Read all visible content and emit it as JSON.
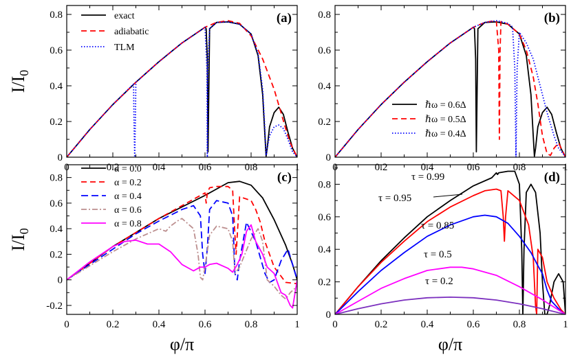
{
  "chart_data": [
    {
      "panel": "a",
      "type": "line",
      "label": "(a)",
      "ylabel": "I/I0",
      "xlabel": "",
      "xlim": [
        0,
        1
      ],
      "ylim": [
        0,
        0.85
      ],
      "xticks": [
        "0",
        "0.2",
        "0.4",
        "0.6",
        "0.8",
        "1"
      ],
      "yticks": [
        "0",
        "0.2",
        "0.4",
        "0.6",
        "0.8"
      ],
      "legend": [
        "exact",
        "adiabatic",
        "TLM"
      ],
      "legend_position": "top-left",
      "series": [
        {
          "name": "exact",
          "color": "#000000",
          "dash": "solid",
          "x": [
            0,
            0.1,
            0.2,
            0.3,
            0.4,
            0.5,
            0.58,
            0.6,
            0.605,
            0.61,
            0.613,
            0.62,
            0.65,
            0.7,
            0.75,
            0.8,
            0.83,
            0.85,
            0.86,
            0.865,
            0.87,
            0.88,
            0.9,
            0.92,
            0.94,
            0.96,
            0.98,
            1.0
          ],
          "y": [
            0,
            0.155,
            0.295,
            0.42,
            0.535,
            0.64,
            0.71,
            0.728,
            0.72,
            0.55,
            0.03,
            0.72,
            0.755,
            0.758,
            0.745,
            0.69,
            0.57,
            0.35,
            0.12,
            0.005,
            0.05,
            0.17,
            0.25,
            0.28,
            0.24,
            0.14,
            0.05,
            0
          ]
        },
        {
          "name": "adiabatic",
          "color": "#ff0000",
          "dash": "8,5",
          "x": [
            0,
            0.1,
            0.2,
            0.3,
            0.4,
            0.5,
            0.6,
            0.65,
            0.7,
            0.75,
            0.8,
            0.85,
            0.9,
            0.95,
            0.97,
            1.0
          ],
          "y": [
            0,
            0.155,
            0.295,
            0.42,
            0.535,
            0.64,
            0.728,
            0.755,
            0.765,
            0.75,
            0.68,
            0.55,
            0.38,
            0.16,
            0.08,
            0
          ]
        },
        {
          "name": "TLM",
          "color": "#0000ff",
          "dash": "1.5,2.5",
          "x": [
            0,
            0.1,
            0.2,
            0.29,
            0.292,
            0.295,
            0.298,
            0.3,
            0.4,
            0.5,
            0.6,
            0.608,
            0.61,
            0.612,
            0.62,
            0.65,
            0.7,
            0.75,
            0.8,
            0.83,
            0.85,
            0.86,
            0.865,
            0.87,
            0.88,
            0.9,
            0.92,
            0.94,
            0.96,
            0.98,
            1.0
          ],
          "y": [
            0,
            0.155,
            0.295,
            0.41,
            0.2,
            0,
            0.2,
            0.42,
            0.535,
            0.64,
            0.728,
            0.5,
            0.0,
            0.5,
            0.72,
            0.755,
            0.758,
            0.745,
            0.69,
            0.58,
            0.38,
            0.15,
            0.01,
            0.05,
            0.12,
            0.17,
            0.18,
            0.16,
            0.1,
            0.03,
            0
          ]
        }
      ]
    },
    {
      "panel": "b",
      "type": "line",
      "label": "(b)",
      "ylabel": "",
      "xlabel": "",
      "xlim": [
        0,
        1
      ],
      "ylim": [
        0,
        0.85
      ],
      "xticks": [
        "0",
        "0.2",
        "0.4",
        "0.6",
        "0.8",
        "1"
      ],
      "yticks": [
        "0",
        "0.2",
        "0.4",
        "0.6",
        "0.8"
      ],
      "legend": [
        "ℏω = 0.6Δ",
        "ℏω = 0.5Δ",
        "ℏω = 0.4Δ"
      ],
      "legend_position": "bottom-right",
      "series": [
        {
          "name": "ℏω = 0.6Δ",
          "color": "#000000",
          "dash": "solid",
          "x": [
            0,
            0.1,
            0.2,
            0.3,
            0.4,
            0.5,
            0.58,
            0.6,
            0.605,
            0.61,
            0.613,
            0.62,
            0.65,
            0.7,
            0.75,
            0.8,
            0.83,
            0.85,
            0.86,
            0.865,
            0.87,
            0.88,
            0.9,
            0.92,
            0.94,
            0.96,
            0.98,
            1.0
          ],
          "y": [
            0,
            0.155,
            0.295,
            0.42,
            0.535,
            0.64,
            0.71,
            0.728,
            0.72,
            0.55,
            0.03,
            0.72,
            0.755,
            0.758,
            0.745,
            0.69,
            0.57,
            0.35,
            0.12,
            0.005,
            0.05,
            0.17,
            0.25,
            0.28,
            0.24,
            0.14,
            0.05,
            0
          ]
        },
        {
          "name": "ℏω = 0.5Δ",
          "color": "#ff0000",
          "dash": "8,5",
          "x": [
            0,
            0.1,
            0.2,
            0.3,
            0.4,
            0.5,
            0.6,
            0.65,
            0.68,
            0.7,
            0.71,
            0.713,
            0.716,
            0.72,
            0.75,
            0.8,
            0.83,
            0.86,
            0.88,
            0.9,
            0.92,
            0.935,
            0.95,
            0.97,
            1.0
          ],
          "y": [
            0,
            0.155,
            0.295,
            0.42,
            0.535,
            0.64,
            0.728,
            0.755,
            0.762,
            0.762,
            0.6,
            0.1,
            0.6,
            0.76,
            0.745,
            0.69,
            0.6,
            0.45,
            0.3,
            0.12,
            0.02,
            0.01,
            0.05,
            0.08,
            0
          ]
        },
        {
          "name": "ℏω = 0.4Δ",
          "color": "#0000ff",
          "dash": "1.5,2.5",
          "x": [
            0,
            0.1,
            0.2,
            0.3,
            0.4,
            0.5,
            0.6,
            0.65,
            0.7,
            0.75,
            0.77,
            0.78,
            0.785,
            0.79,
            0.8,
            0.83,
            0.86,
            0.9,
            0.92,
            0.95,
            0.97,
            0.99,
            1.0
          ],
          "y": [
            0,
            0.155,
            0.295,
            0.42,
            0.535,
            0.64,
            0.728,
            0.755,
            0.765,
            0.75,
            0.73,
            0.5,
            0.0,
            0.5,
            0.7,
            0.64,
            0.55,
            0.35,
            0.25,
            0.12,
            0.05,
            0.02,
            0
          ]
        }
      ]
    },
    {
      "panel": "c",
      "type": "line",
      "label": "(c)",
      "ylabel": "I/I0",
      "xlabel": "φ/π",
      "xlim": [
        0,
        1
      ],
      "ylim": [
        -0.27,
        0.9
      ],
      "xticks": [
        "0",
        "0.2",
        "0.4",
        "0.6",
        "0.8",
        "1"
      ],
      "yticks": [
        "-0.2",
        "0",
        "0.2",
        "0.4",
        "0.6",
        "0.8"
      ],
      "legend": [
        "α = 0.0",
        "α = 0.2",
        "α = 0.4",
        "α = 0.6",
        "α = 0.8"
      ],
      "legend_position": "top-left",
      "series": [
        {
          "name": "α = 0.0",
          "color": "#000000",
          "dash": "solid",
          "x": [
            0,
            0.1,
            0.2,
            0.3,
            0.4,
            0.5,
            0.6,
            0.65,
            0.7,
            0.75,
            0.8,
            0.85,
            0.9,
            0.95,
            0.98,
            1.0
          ],
          "y": [
            0,
            0.13,
            0.26,
            0.37,
            0.48,
            0.57,
            0.66,
            0.71,
            0.76,
            0.77,
            0.74,
            0.64,
            0.47,
            0.27,
            0.12,
            0
          ]
        },
        {
          "name": "α = 0.2",
          "color": "#ff0000",
          "dash": "8,5",
          "x": [
            0,
            0.1,
            0.2,
            0.3,
            0.4,
            0.5,
            0.58,
            0.6,
            0.605,
            0.61,
            0.62,
            0.65,
            0.7,
            0.72,
            0.73,
            0.735,
            0.74,
            0.75,
            0.8,
            0.82,
            0.84,
            0.86,
            0.9,
            0.95,
            1.0
          ],
          "y": [
            0,
            0.13,
            0.26,
            0.37,
            0.48,
            0.58,
            0.66,
            0.68,
            0.6,
            0.68,
            0.72,
            0.73,
            0.73,
            0.7,
            0.35,
            0.2,
            0.35,
            0.65,
            0.62,
            0.55,
            0.45,
            0.3,
            0.1,
            -0.02,
            -0.03
          ]
        },
        {
          "name": "α = 0.4",
          "color": "#0000ff",
          "dash": "10,5",
          "x": [
            0,
            0.1,
            0.2,
            0.3,
            0.4,
            0.5,
            0.55,
            0.58,
            0.59,
            0.6,
            0.61,
            0.62,
            0.65,
            0.7,
            0.72,
            0.73,
            0.74,
            0.75,
            0.78,
            0.82,
            0.86,
            0.88,
            0.9,
            0.93,
            0.96,
            1.0
          ],
          "y": [
            0,
            0.12,
            0.24,
            0.36,
            0.46,
            0.55,
            0.58,
            0.5,
            0.2,
            0.05,
            0.25,
            0.55,
            0.62,
            0.6,
            0.5,
            0.05,
            0.0,
            0.15,
            0.45,
            0.3,
            0.05,
            -0.02,
            0.0,
            0.15,
            0.24,
            0.0
          ]
        },
        {
          "name": "α = 0.6",
          "color": "#bc8f8f",
          "dash": "8,3,2,3",
          "x": [
            0,
            0.1,
            0.2,
            0.3,
            0.4,
            0.43,
            0.45,
            0.48,
            0.5,
            0.55,
            0.57,
            0.58,
            0.59,
            0.6,
            0.62,
            0.65,
            0.7,
            0.72,
            0.73,
            0.75,
            0.8,
            0.83,
            0.85,
            0.87,
            0.9,
            0.93,
            0.95,
            0.97,
            1.0
          ],
          "y": [
            0,
            0.11,
            0.22,
            0.32,
            0.4,
            0.38,
            0.42,
            0.46,
            0.48,
            0.4,
            0.2,
            0.02,
            0.0,
            0.1,
            0.35,
            0.42,
            0.4,
            0.3,
            0.05,
            0.1,
            0.32,
            0.4,
            0.3,
            0.0,
            -0.05,
            -0.12,
            -0.15,
            -0.1,
            -0.05
          ]
        },
        {
          "name": "α = 0.8",
          "color": "#ff00ff",
          "dash": "solid",
          "x": [
            0,
            0.05,
            0.1,
            0.15,
            0.2,
            0.25,
            0.3,
            0.35,
            0.4,
            0.45,
            0.5,
            0.55,
            0.58,
            0.6,
            0.62,
            0.65,
            0.7,
            0.72,
            0.74,
            0.76,
            0.78,
            0.8,
            0.82,
            0.85,
            0.87,
            0.9,
            0.93,
            0.95,
            0.97,
            0.98,
            1.0
          ],
          "y": [
            0,
            0.07,
            0.14,
            0.2,
            0.26,
            0.3,
            0.31,
            0.28,
            0.28,
            0.22,
            0.12,
            0.07,
            0.1,
            0.1,
            0.12,
            0.13,
            0.09,
            0.06,
            0.12,
            0.2,
            0.38,
            0.43,
            0.3,
            0.2,
            0.1,
            0.05,
            -0.1,
            -0.12,
            -0.2,
            -0.22,
            0.0
          ]
        }
      ]
    },
    {
      "panel": "d",
      "type": "line",
      "label": "(d)",
      "ylabel": "",
      "xlabel": "φ/π",
      "xlim": [
        0,
        1
      ],
      "ylim": [
        0,
        0.92
      ],
      "xticks": [
        "0",
        "0.2",
        "0.4",
        "0.6",
        "0.8",
        "1"
      ],
      "yticks": [
        "0",
        "0.2",
        "0.4",
        "0.6",
        "0.8"
      ],
      "annotations": [
        "τ = 0.99",
        "τ = 0.95",
        "τ = 0.85",
        "τ = 0.5",
        "τ = 0.2"
      ],
      "series": [
        {
          "name": "τ = 0.99",
          "color": "#000000",
          "dash": "solid",
          "x": [
            0,
            0.1,
            0.2,
            0.3,
            0.4,
            0.5,
            0.6,
            0.68,
            0.7,
            0.705,
            0.71,
            0.75,
            0.78,
            0.8,
            0.81,
            0.815,
            0.82,
            0.83,
            0.85,
            0.87,
            0.89,
            0.9,
            0.91,
            0.92,
            0.93,
            0.95,
            0.97,
            0.99,
            1.0
          ],
          "y": [
            0,
            0.17,
            0.33,
            0.47,
            0.6,
            0.7,
            0.79,
            0.84,
            0.87,
            0.86,
            0.87,
            0.88,
            0.88,
            0.8,
            0.4,
            0.0,
            0.4,
            0.75,
            0.8,
            0.75,
            0.5,
            0.2,
            0.0,
            0.0,
            0.05,
            0.2,
            0.25,
            0.2,
            0
          ]
        },
        {
          "name": "τ = 0.95",
          "color": "#ff0000",
          "dash": "solid",
          "x": [
            0,
            0.1,
            0.2,
            0.3,
            0.4,
            0.5,
            0.6,
            0.65,
            0.7,
            0.72,
            0.73,
            0.735,
            0.74,
            0.75,
            0.8,
            0.84,
            0.86,
            0.87,
            0.875,
            0.88,
            0.9,
            0.92,
            0.95,
            0.98,
            1.0
          ],
          "y": [
            0,
            0.17,
            0.32,
            0.45,
            0.57,
            0.66,
            0.73,
            0.76,
            0.77,
            0.76,
            0.6,
            0.45,
            0.6,
            0.76,
            0.7,
            0.55,
            0.35,
            0.05,
            0.0,
            0.4,
            0.35,
            0.2,
            0.1,
            0.03,
            0
          ]
        },
        {
          "name": "τ = 0.85",
          "color": "#0000ff",
          "dash": "solid",
          "x": [
            0,
            0.1,
            0.2,
            0.3,
            0.4,
            0.5,
            0.6,
            0.65,
            0.7,
            0.75,
            0.8,
            0.85,
            0.88,
            0.9,
            0.92,
            0.94,
            0.96,
            0.98,
            1.0
          ],
          "y": [
            0,
            0.14,
            0.27,
            0.38,
            0.48,
            0.55,
            0.6,
            0.61,
            0.6,
            0.56,
            0.48,
            0.38,
            0.3,
            0.25,
            0.15,
            0.08,
            0.05,
            0.02,
            0
          ]
        },
        {
          "name": "τ = 0.5",
          "color": "#ff00ff",
          "dash": "solid",
          "x": [
            0,
            0.1,
            0.2,
            0.3,
            0.4,
            0.5,
            0.55,
            0.6,
            0.7,
            0.8,
            0.9,
            1.0
          ],
          "y": [
            0,
            0.08,
            0.16,
            0.22,
            0.27,
            0.29,
            0.29,
            0.28,
            0.24,
            0.17,
            0.09,
            0
          ]
        },
        {
          "name": "τ = 0.2",
          "color": "#7b2fbe",
          "dash": "solid",
          "x": [
            0,
            0.1,
            0.2,
            0.3,
            0.4,
            0.5,
            0.6,
            0.7,
            0.8,
            0.9,
            1.0
          ],
          "y": [
            0,
            0.035,
            0.065,
            0.088,
            0.102,
            0.106,
            0.102,
            0.088,
            0.065,
            0.035,
            0
          ]
        }
      ]
    }
  ]
}
